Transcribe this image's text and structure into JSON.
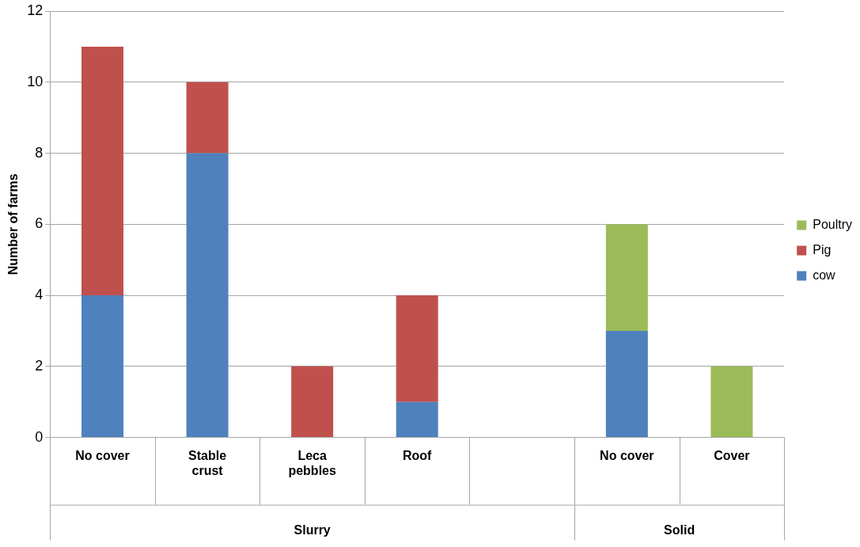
{
  "chart_data": {
    "type": "bar",
    "stacked": true,
    "ylabel": "Number of farms",
    "categories": [
      "No cover",
      "Stable crust",
      "Leca pebbles",
      "Roof",
      null,
      "No cover",
      "Cover"
    ],
    "series": [
      {
        "name": "cow",
        "color": "#4f81bd",
        "values": [
          4,
          8,
          0,
          1,
          0,
          3,
          0
        ]
      },
      {
        "name": "Pig",
        "color": "#c0504d",
        "values": [
          7,
          2,
          2,
          3,
          0,
          0,
          0
        ]
      },
      {
        "name": "Poultry",
        "color": "#9bbb59",
        "values": [
          0,
          0,
          0,
          0,
          0,
          3,
          2
        ]
      }
    ],
    "ylim": [
      0,
      12
    ],
    "yticks": [
      0,
      2,
      4,
      6,
      8,
      10,
      12
    ],
    "grid": "y",
    "legend": "right",
    "annotations": [
      "Slurry",
      "Solid"
    ]
  }
}
